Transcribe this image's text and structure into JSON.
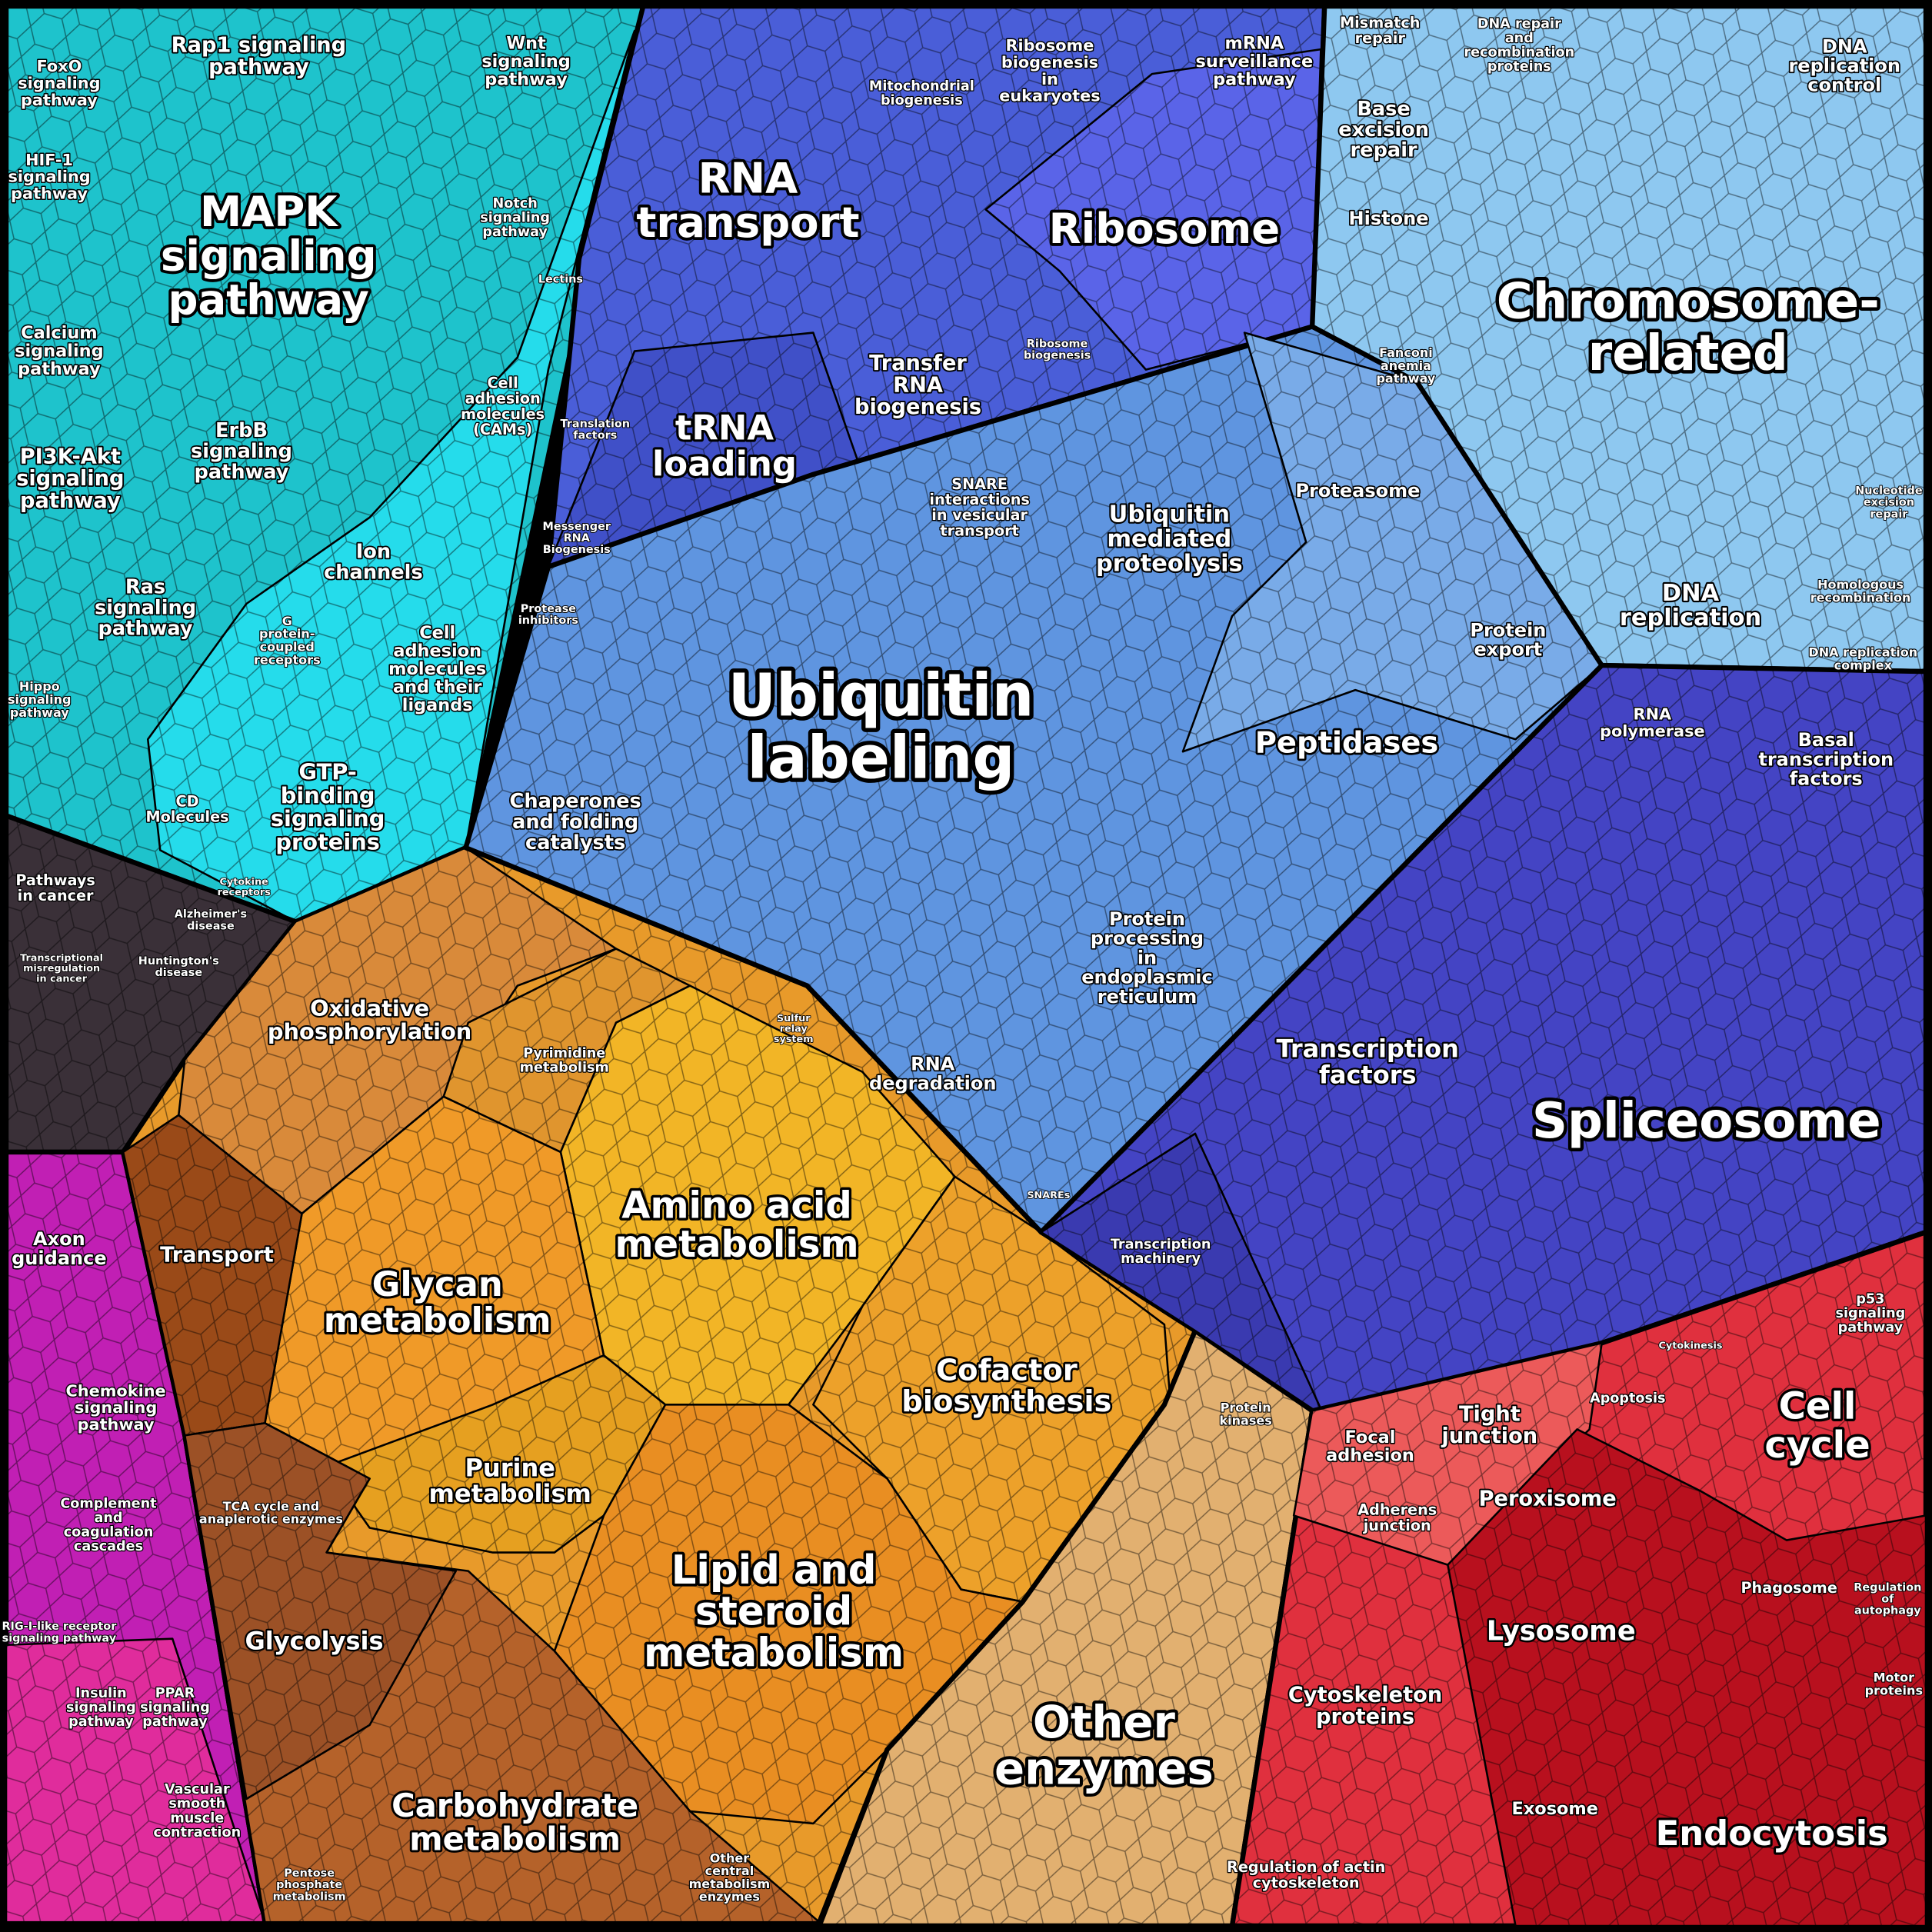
{
  "labels": [
    [
      "MAPK",
      "signaling",
      "pathway"
    ],
    [
      "Rap1 signaling",
      "pathway"
    ],
    [
      "Wnt",
      "signaling",
      "pathway"
    ],
    [
      "FoxO",
      "signaling",
      "pathway"
    ],
    [
      "HIF-1",
      "signaling",
      "pathway"
    ],
    [
      "Calcium",
      "signaling",
      "pathway"
    ],
    [
      "PI3K-Akt",
      "signaling",
      "pathway"
    ],
    [
      "ErbB",
      "signaling",
      "pathway"
    ],
    [
      "Ras",
      "signaling",
      "pathway"
    ],
    [
      "Hippo",
      "signaling",
      "pathway"
    ],
    [
      "Notch",
      "signaling",
      "pathway"
    ],
    [
      "Ion",
      "channels"
    ],
    [
      "Cell",
      "adhesion",
      "molecules",
      "(CAMs)"
    ],
    [
      "Cell",
      "adhesion",
      "molecules",
      "and their",
      "ligands"
    ],
    [
      "GTP-",
      "binding",
      "signaling",
      "proteins"
    ],
    [
      "G",
      "protein-",
      "coupled",
      "receptors"
    ],
    [
      "CD",
      "Molecules"
    ],
    [
      "Pathways",
      "in cancer"
    ],
    [
      "Alzheimer's",
      "disease"
    ],
    [
      "Huntington's",
      "disease"
    ],
    [
      "Transcriptional",
      "misregulation",
      "in cancer"
    ],
    [
      "Oxidative",
      "phosphorylation"
    ],
    [
      "Transport"
    ],
    [
      "Axon",
      "guidance"
    ],
    [
      "Chemokine",
      "signaling",
      "pathway"
    ],
    [
      "Complement",
      "and",
      "coagulation",
      "cascades"
    ],
    [
      "RIG-I-like receptor",
      "signaling pathway"
    ],
    [
      "Insulin",
      "signaling",
      "pathway"
    ],
    [
      "PPAR",
      "signaling",
      "pathway"
    ],
    [
      "Vascular",
      "smooth",
      "muscle",
      "contraction"
    ],
    [
      "RNA",
      "transport"
    ],
    [
      "Mitochondrial",
      "biogenesis"
    ],
    [
      "Ribosome",
      "biogenesis",
      "in",
      "eukaryotes"
    ],
    [
      "mRNA",
      "surveillance",
      "pathway"
    ],
    [
      "Ribosome"
    ],
    [
      "Transfer",
      "RNA",
      "biogenesis"
    ],
    [
      "tRNA",
      "loading"
    ],
    [
      "Translation",
      "factors"
    ],
    [
      "Messenger",
      "RNA",
      "Biogenesis"
    ],
    [
      "Ribosome",
      "biogenesis"
    ],
    [
      "Mismatch",
      "repair"
    ],
    [
      "DNA repair",
      "and",
      "recombination",
      "proteins"
    ],
    [
      "DNA",
      "replication",
      "control"
    ],
    [
      "Base",
      "excision",
      "repair"
    ],
    [
      "Histone"
    ],
    [
      "Chromosome-",
      "related"
    ],
    [
      "Fanconi",
      "anemia",
      "pathway"
    ],
    [
      "Nucleotide",
      "excision",
      "repair"
    ],
    [
      "Homologous",
      "recombination"
    ],
    [
      "DNA",
      "replication"
    ],
    [
      "DNA replication",
      "complex"
    ],
    [
      "Proteasome"
    ],
    [
      "Ubiquitin",
      "mediated",
      "proteolysis"
    ],
    [
      "SNARE",
      "interactions",
      "in vesicular",
      "transport"
    ],
    [
      "Protease",
      "inhibitors"
    ],
    [
      "Ubiquitin",
      "labeling"
    ],
    [
      "Chaperones",
      "and folding",
      "catalysts"
    ],
    [
      "Peptidases"
    ],
    [
      "Protein",
      "export"
    ],
    [
      "Protein",
      "processing",
      "in",
      "endoplasmic",
      "reticulum"
    ],
    [
      "RNA",
      "degradation"
    ],
    [
      "Sulfur",
      "relay",
      "system"
    ],
    [
      "SNAREs"
    ],
    [
      "RNA",
      "polymerase"
    ],
    [
      "Basal",
      "transcription",
      "factors"
    ],
    [
      "Transcription",
      "factors"
    ],
    [
      "Spliceosome"
    ],
    [
      "Transcription",
      "machinery"
    ],
    [
      "Pyrimidine",
      "metabolism"
    ],
    [
      "Amino acid",
      "metabolism"
    ],
    [
      "Glycan",
      "metabolism"
    ],
    [
      "Cofactor",
      "biosynthesis"
    ],
    [
      "Purine",
      "metabolism"
    ],
    [
      "Lipid and",
      "steroid",
      "metabolism"
    ],
    [
      "TCA cycle and",
      "anaplerotic enzymes"
    ],
    [
      "Glycolysis"
    ],
    [
      "Carbohydrate",
      "metabolism"
    ],
    [
      "Pentose",
      "phosphate",
      "metabolism"
    ],
    [
      "Other",
      "central",
      "metabolism",
      "enzymes"
    ],
    [
      "Protein",
      "kinases"
    ],
    [
      "Other",
      "enzymes"
    ],
    [
      "Focal",
      "adhesion"
    ],
    [
      "Tight",
      "junction"
    ],
    [
      "Adherens",
      "junction"
    ],
    [
      "Apoptosis"
    ],
    [
      "Cytokinesis"
    ],
    [
      "p53",
      "signaling",
      "pathway"
    ],
    [
      "Cell",
      "cycle"
    ],
    [
      "Peroxisome"
    ],
    [
      "Phagosome"
    ],
    [
      "Regulation",
      "of",
      "autophagy"
    ],
    [
      "Motor",
      "proteins"
    ],
    [
      "Lysosome"
    ],
    [
      "Cytoskeleton",
      "proteins"
    ],
    [
      "Exosome"
    ],
    [
      "Endocytosis"
    ],
    [
      "Regulation of actin",
      "cytoskeleton"
    ],
    [
      "Lectins"
    ],
    [
      "Cytokine",
      "receptors"
    ]
  ]
}
